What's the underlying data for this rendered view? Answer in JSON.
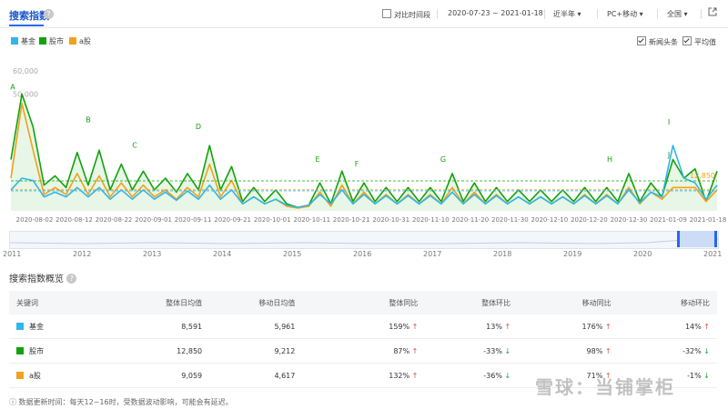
{
  "header": {
    "title": "搜索指数",
    "help_icon": "?",
    "compare_label": "对比时间段",
    "date_range": "2020-07-23 ~ 2021-01-18",
    "period": "近半年",
    "device": "PC+移动",
    "region": "全国"
  },
  "legend": [
    {
      "name": "基金",
      "color": "#2fb6ea"
    },
    {
      "name": "股市",
      "color": "#12a20e"
    },
    {
      "name": "a股",
      "color": "#f0a21c"
    }
  ],
  "options": {
    "news": "新闻头条",
    "avg": "平均值"
  },
  "chart_data": {
    "type": "line",
    "yticks": [
      "60,000",
      "50,000"
    ],
    "ylim": [
      0,
      65000
    ],
    "xticks": [
      "2020-08-02",
      "2020-08-12",
      "2020-08-22",
      "2020-09-01",
      "2020-09-11",
      "2020-09-21",
      "2020-10-01",
      "2020-10-11",
      "2020-10-21",
      "2020-10-31",
      "2020-11-10",
      "2020-11-20",
      "2020-11-30",
      "2020-12-10",
      "2020-12-20",
      "2020-12-30",
      "2021-01-09",
      "2021-01-18"
    ],
    "annotations": [
      "A",
      "B",
      "C",
      "D",
      "E",
      "F",
      "G",
      "H",
      "I",
      "J"
    ],
    "end_label": "12,850",
    "averages": {
      "基金": 8591,
      "股市": 12850,
      "a股": 9059
    },
    "series": [
      {
        "name": "股市",
        "color": "#12a20e",
        "values": [
          22000,
          50000,
          36000,
          11000,
          15000,
          10000,
          25000,
          11000,
          26000,
          9000,
          20000,
          9000,
          17000,
          9000,
          14000,
          8000,
          16000,
          9000,
          28000,
          9000,
          19000,
          4000,
          10000,
          4000,
          9000,
          3000,
          1500,
          2500,
          12000,
          3000,
          17000,
          4000,
          12000,
          4000,
          10000,
          4000,
          10000,
          4000,
          10000,
          4000,
          16000,
          4000,
          12000,
          4000,
          10000,
          4000,
          9000,
          4000,
          9000,
          4000,
          9000,
          4000,
          10000,
          4000,
          10000,
          4000,
          16000,
          4000,
          12000,
          6000,
          22000,
          14000,
          18000,
          4000,
          17000
        ]
      },
      {
        "name": "a股",
        "color": "#f0a21c",
        "values": [
          14000,
          46000,
          26000,
          7000,
          10000,
          7000,
          16000,
          7000,
          15000,
          6000,
          12000,
          6000,
          11000,
          6000,
          9000,
          5000,
          10000,
          6000,
          20000,
          6000,
          13000,
          3000,
          6000,
          3000,
          5000,
          2000,
          1200,
          2000,
          8000,
          2000,
          11000,
          3000,
          8000,
          3000,
          7000,
          3000,
          7000,
          3000,
          7000,
          3000,
          10000,
          3000,
          8000,
          3000,
          7000,
          3000,
          6000,
          3000,
          6000,
          3000,
          6000,
          3000,
          7000,
          3000,
          7000,
          3000,
          10000,
          3000,
          8000,
          5000,
          10000,
          10000,
          10000,
          4000,
          9000
        ]
      },
      {
        "name": "基金",
        "color": "#2fb6ea",
        "values": [
          9000,
          14000,
          13000,
          6000,
          8000,
          6000,
          10000,
          6000,
          10000,
          5000,
          9000,
          5000,
          9000,
          5000,
          8000,
          4500,
          8500,
          5000,
          11000,
          5000,
          9000,
          3000,
          6000,
          3000,
          5000,
          2500,
          1500,
          2500,
          7000,
          3000,
          9000,
          3000,
          7000,
          3000,
          6500,
          3000,
          6500,
          3000,
          6500,
          3000,
          8000,
          3000,
          7000,
          3000,
          6500,
          3000,
          6000,
          3000,
          6000,
          3000,
          6000,
          3000,
          6500,
          3000,
          6500,
          3000,
          9000,
          3500,
          8000,
          6000,
          28000,
          14000,
          12000,
          5000,
          11000
        ]
      }
    ]
  },
  "mini": {
    "years": [
      "2011",
      "2012",
      "2013",
      "2014",
      "2015",
      "2016",
      "2017",
      "2018",
      "2019",
      "2020",
      "2021"
    ]
  },
  "overview": {
    "title": "搜索指数概览",
    "columns": [
      "关键词",
      "整体日均值",
      "移动日均值",
      "整体同比",
      "整体环比",
      "移动同比",
      "移动环比"
    ],
    "rows": [
      {
        "keyword": "基金",
        "color": "#2fb6ea",
        "overall_avg": "8,591",
        "mobile_avg": "5,961",
        "yoy": "159%",
        "yoy_dir": "up",
        "mom": "13%",
        "mom_dir": "up",
        "m_yoy": "176%",
        "m_yoy_dir": "up",
        "m_mom": "14%",
        "m_mom_dir": "up"
      },
      {
        "keyword": "股市",
        "color": "#12a20e",
        "overall_avg": "12,850",
        "mobile_avg": "9,212",
        "yoy": "87%",
        "yoy_dir": "up",
        "mom": "-33%",
        "mom_dir": "down",
        "m_yoy": "98%",
        "m_yoy_dir": "up",
        "m_mom": "-32%",
        "m_mom_dir": "down"
      },
      {
        "keyword": "a股",
        "color": "#f0a21c",
        "overall_avg": "9,059",
        "mobile_avg": "4,617",
        "yoy": "132%",
        "yoy_dir": "up",
        "mom": "-36%",
        "mom_dir": "down",
        "m_yoy": "71%",
        "m_yoy_dir": "up",
        "m_mom": "-1%",
        "m_mom_dir": "down"
      }
    ]
  },
  "footer_note": "数据更新时间：每天12~16时，受数据波动影响，可能会有延迟。",
  "watermark": "雪球：当铺掌柜"
}
